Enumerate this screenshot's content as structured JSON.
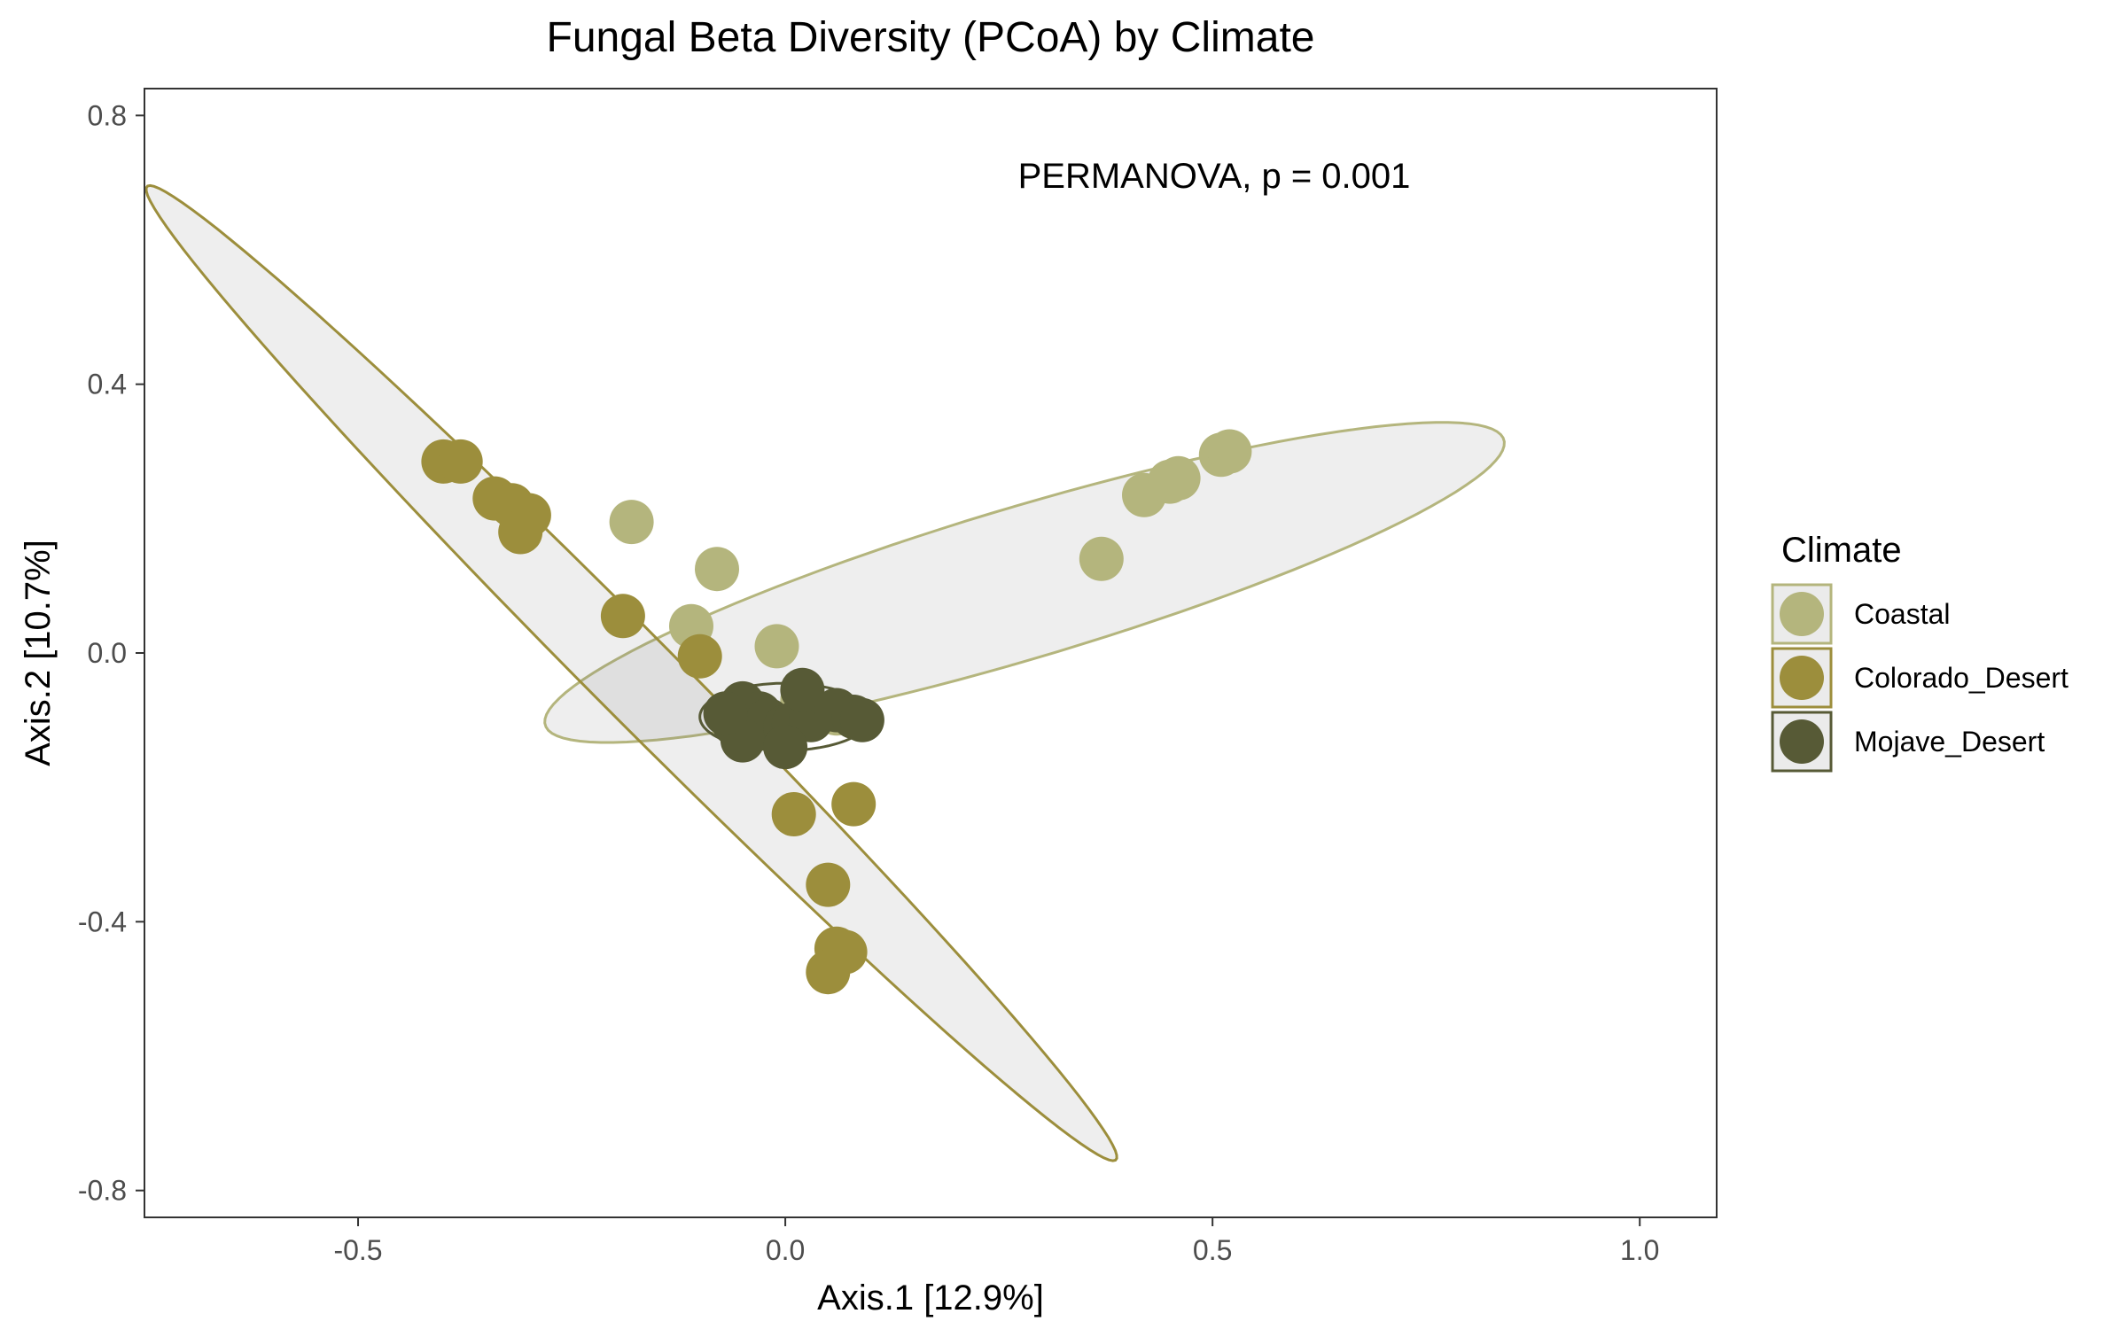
{
  "chart_data": {
    "type": "scatter",
    "title": "Fungal Beta Diversity (PCoA) by Climate",
    "xlabel": "Axis.1   [12.9%]",
    "ylabel": "Axis.2   [10.7%]",
    "xlim": [
      -0.75,
      1.09
    ],
    "ylim": [
      -0.84,
      0.84
    ],
    "x_ticks": [
      -0.5,
      0.0,
      0.5,
      1.0
    ],
    "x_tick_labels": [
      "-0.5",
      "0.0",
      "0.5",
      "1.0"
    ],
    "y_ticks": [
      0.8,
      0.4,
      0.0,
      -0.4,
      -0.8
    ],
    "y_tick_labels": [
      "0.8",
      "0.4",
      "0.0",
      "-0.4",
      "-0.8"
    ],
    "grid": false,
    "annotation": "PERMANOVA, p = 0.001",
    "legend_title": "Climate",
    "legend_position": "right",
    "series": [
      {
        "name": "Coastal",
        "color": "#b4b57d",
        "points": [
          [
            -0.18,
            0.195
          ],
          [
            -0.08,
            0.125
          ],
          [
            -0.11,
            0.04
          ],
          [
            -0.01,
            0.01
          ],
          [
            0.37,
            0.14
          ],
          [
            0.42,
            0.235
          ],
          [
            0.46,
            0.26
          ],
          [
            0.45,
            0.255
          ],
          [
            0.51,
            0.295
          ],
          [
            0.52,
            0.3
          ],
          [
            0.02,
            -0.07
          ],
          [
            0.06,
            -0.09
          ]
        ],
        "ellipse": {
          "center": [
            0.28,
            0.105
          ],
          "semi_major": 0.6,
          "semi_minor": 0.11,
          "angle_deg": 21
        }
      },
      {
        "name": "Colorado_Desert",
        "color": "#9c8e3c",
        "points": [
          [
            -0.4,
            0.285
          ],
          [
            -0.38,
            0.285
          ],
          [
            -0.34,
            0.23
          ],
          [
            -0.32,
            0.22
          ],
          [
            -0.3,
            0.205
          ],
          [
            -0.31,
            0.18
          ],
          [
            -0.19,
            0.055
          ],
          [
            -0.1,
            -0.005
          ],
          [
            0.01,
            -0.24
          ],
          [
            0.08,
            -0.225
          ],
          [
            0.05,
            -0.345
          ],
          [
            0.06,
            -0.44
          ],
          [
            0.07,
            -0.445
          ],
          [
            0.05,
            -0.475
          ]
        ],
        "ellipse": {
          "center": [
            -0.18,
            -0.03
          ],
          "semi_major": 0.92,
          "semi_minor": 0.055,
          "angle_deg": -52
        }
      },
      {
        "name": "Mojave_Desert",
        "color": "#575a36",
        "points": [
          [
            -0.05,
            -0.075
          ],
          [
            -0.03,
            -0.09
          ],
          [
            -0.04,
            -0.115
          ],
          [
            -0.06,
            -0.105
          ],
          [
            -0.02,
            -0.1
          ],
          [
            0.0,
            -0.11
          ],
          [
            0.01,
            -0.105
          ],
          [
            0.03,
            -0.1
          ],
          [
            -0.05,
            -0.13
          ],
          [
            0.0,
            -0.14
          ],
          [
            0.02,
            -0.055
          ],
          [
            0.06,
            -0.085
          ],
          [
            0.08,
            -0.095
          ],
          [
            0.09,
            -0.1
          ],
          [
            -0.07,
            -0.09
          ]
        ],
        "ellipse": {
          "center": [
            0.0,
            -0.095
          ],
          "semi_major": 0.1,
          "semi_minor": 0.05,
          "angle_deg": 0
        }
      }
    ]
  }
}
